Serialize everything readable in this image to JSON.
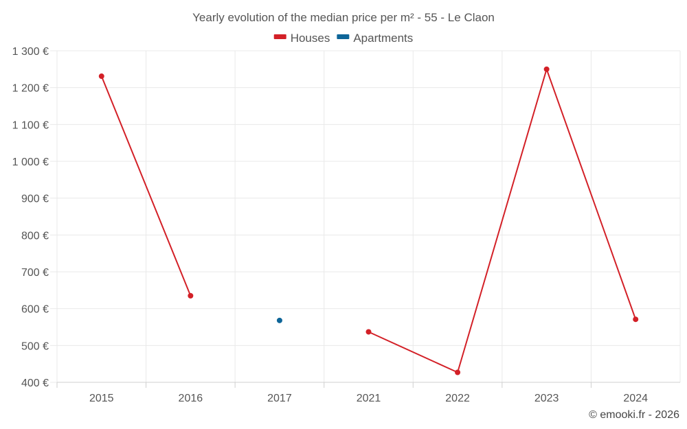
{
  "chart_data": {
    "type": "line",
    "title": "Yearly evolution of the median price per m² - 55 - Le Claon",
    "categories": [
      "2015",
      "2016",
      "2017",
      "2021",
      "2022",
      "2023",
      "2024"
    ],
    "y_ticks": [
      "400 €",
      "500 €",
      "600 €",
      "700 €",
      "800 €",
      "900 €",
      "1 000 €",
      "1 100 €",
      "1 200 €",
      "1 300 €"
    ],
    "ylim": [
      400,
      1300
    ],
    "series": [
      {
        "name": "Houses",
        "color": "#d32027",
        "values": [
          1231,
          635,
          null,
          537,
          427,
          1250,
          571
        ]
      },
      {
        "name": "Apartments",
        "color": "#0e6598",
        "values": [
          null,
          null,
          568,
          null,
          null,
          null,
          null
        ]
      }
    ],
    "legend_position": "top-center",
    "grid": true
  },
  "credit": "© emooki.fr - 2026"
}
